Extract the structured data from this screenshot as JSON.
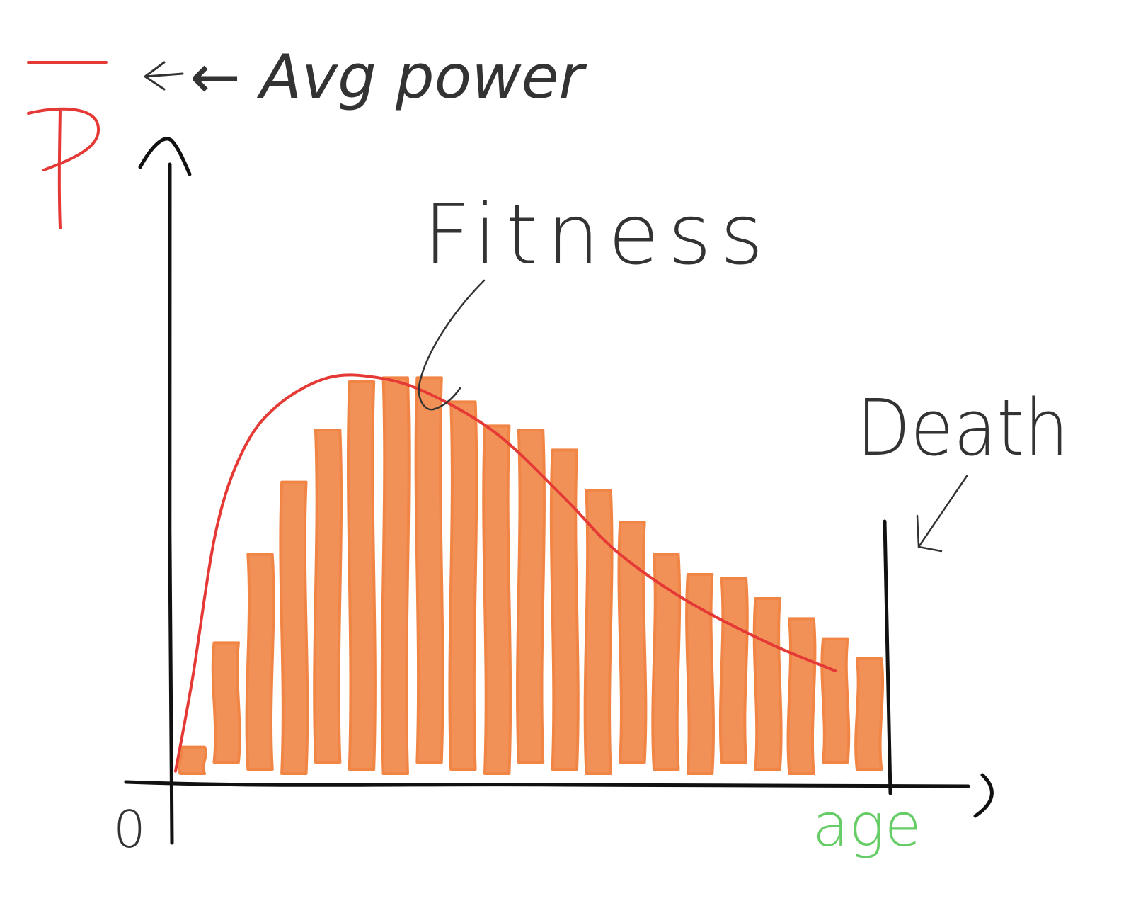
{
  "chart_data": {
    "type": "bar",
    "ylabel_symbol": "P",
    "ylabel_note": "← Avg power",
    "xlabel": "age",
    "origin_label": "0",
    "curve_label": "Fitness",
    "end_label": "Death",
    "colors": {
      "bars": "#F08545",
      "curve": "#E53935",
      "axes": "#111111",
      "ylabel_symbol": "#E53935",
      "xlabel": "#66CC66",
      "annotation": "#333333"
    },
    "series": [
      {
        "values": [
          0.08,
          0.34,
          0.56,
          0.74,
          0.87,
          0.99,
          1.0,
          1.0,
          0.94,
          0.88,
          0.87,
          0.82,
          0.72,
          0.64,
          0.56,
          0.51,
          0.5,
          0.45,
          0.4,
          0.35,
          0.3
        ]
      }
    ],
    "curve": [
      [
        0,
        0.02
      ],
      [
        0.5,
        0.25
      ],
      [
        1.2,
        0.62
      ],
      [
        2,
        0.82
      ],
      [
        3,
        0.93
      ],
      [
        4.5,
        1.0
      ],
      [
        6,
        1.0
      ],
      [
        7.5,
        0.96
      ],
      [
        9.5,
        0.86
      ],
      [
        11.5,
        0.7
      ],
      [
        13,
        0.57
      ],
      [
        15,
        0.45
      ],
      [
        17.5,
        0.34
      ],
      [
        19.5,
        0.27
      ]
    ],
    "xlim": [
      0,
      21
    ],
    "ylim": [
      0,
      1.2
    ]
  }
}
